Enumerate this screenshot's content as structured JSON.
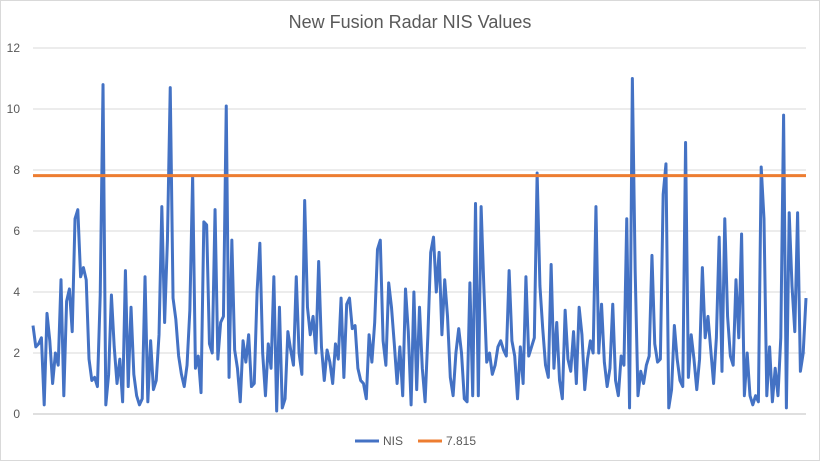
{
  "chart_data": {
    "type": "line",
    "title": "New Fusion Radar NIS Values",
    "xlabel": "",
    "ylabel": "",
    "ylim": [
      0,
      12
    ],
    "yticks": [
      "0",
      "2",
      "4",
      "6",
      "8",
      "10",
      "12"
    ],
    "grid": true,
    "legend_position": "bottom",
    "series": [
      {
        "name": "NIS",
        "color": "#4472C4",
        "values": [
          2.9,
          2.2,
          2.3,
          2.5,
          0.3,
          3.3,
          2.4,
          1.0,
          2.0,
          1.6,
          4.4,
          0.6,
          3.7,
          4.1,
          2.7,
          6.4,
          6.7,
          4.5,
          4.8,
          4.4,
          1.8,
          1.1,
          1.2,
          0.9,
          3.9,
          10.8,
          0.3,
          1.3,
          3.9,
          2.2,
          1.0,
          1.8,
          0.4,
          4.7,
          0.9,
          3.5,
          1.3,
          0.6,
          0.3,
          0.5,
          4.5,
          0.4,
          2.4,
          0.8,
          1.1,
          2.6,
          6.8,
          3.0,
          5.7,
          10.7,
          3.8,
          3.1,
          1.9,
          1.3,
          0.9,
          1.6,
          3.4,
          7.8,
          1.5,
          1.9,
          0.7,
          6.3,
          6.2,
          2.3,
          2.0,
          6.7,
          1.8,
          3.0,
          3.2,
          10.1,
          1.2,
          5.7,
          2.1,
          1.5,
          0.4,
          2.4,
          1.7,
          2.6,
          0.9,
          1.0,
          4.0,
          5.6,
          2.0,
          0.6,
          2.3,
          1.5,
          4.5,
          0.1,
          3.5,
          0.2,
          0.5,
          2.7,
          2.1,
          1.6,
          4.5,
          2.0,
          1.3,
          7.0,
          3.5,
          2.6,
          3.2,
          2.0,
          5.0,
          2.2,
          1.1,
          2.1,
          1.7,
          1.0,
          2.3,
          1.8,
          3.8,
          1.2,
          3.6,
          3.8,
          2.8,
          2.9,
          1.5,
          1.1,
          1.0,
          0.5,
          2.6,
          1.7,
          3.0,
          5.4,
          5.7,
          2.4,
          1.6,
          4.3,
          3.5,
          2.3,
          1.0,
          2.2,
          0.6,
          4.1,
          2.7,
          0.3,
          4.0,
          0.8,
          3.5,
          1.5,
          0.4,
          2.6,
          5.3,
          5.8,
          4.0,
          5.3,
          2.6,
          4.4,
          3.2,
          1.2,
          0.6,
          2.0,
          2.8,
          2.0,
          0.5,
          0.4,
          4.3,
          0.6,
          6.9,
          0.6,
          6.8,
          4.1,
          1.7,
          2.0,
          1.3,
          1.6,
          2.2,
          2.4,
          2.1,
          1.9,
          4.7,
          2.4,
          1.9,
          0.5,
          2.2,
          1.0,
          4.5,
          1.9,
          2.2,
          2.5,
          7.9,
          4.2,
          2.8,
          1.6,
          1.2,
          4.9,
          1.5,
          3.0,
          1.1,
          0.5,
          3.4,
          1.8,
          1.4,
          2.7,
          1.0,
          3.5,
          2.6,
          0.8,
          1.8,
          2.4,
          2.0,
          6.8,
          2.0,
          3.6,
          1.7,
          0.9,
          1.5,
          3.6,
          1.1,
          0.6,
          1.9,
          1.6,
          6.4,
          0.2,
          11.0,
          4.7,
          0.6,
          1.4,
          1.0,
          1.6,
          1.9,
          5.2,
          2.3,
          1.7,
          1.8,
          7.2,
          8.2,
          0.2,
          0.8,
          2.9,
          1.8,
          1.1,
          0.9,
          8.9,
          1.2,
          2.6,
          1.8,
          0.8,
          1.8,
          4.8,
          2.5,
          3.2,
          2.1,
          1.0,
          2.5,
          5.8,
          1.4,
          6.4,
          3.2,
          1.9,
          1.6,
          4.4,
          2.5,
          5.9,
          0.6,
          2.0,
          0.6,
          0.3,
          0.6,
          0.4,
          8.1,
          6.4,
          0.6,
          2.2,
          0.4,
          1.5,
          0.6,
          2.5,
          9.8,
          0.2,
          6.6,
          4.2,
          2.7,
          6.6,
          1.4,
          2.0,
          3.8
        ]
      },
      {
        "name": "7.815",
        "color": "#ED7D31",
        "constant": 7.815
      }
    ]
  }
}
